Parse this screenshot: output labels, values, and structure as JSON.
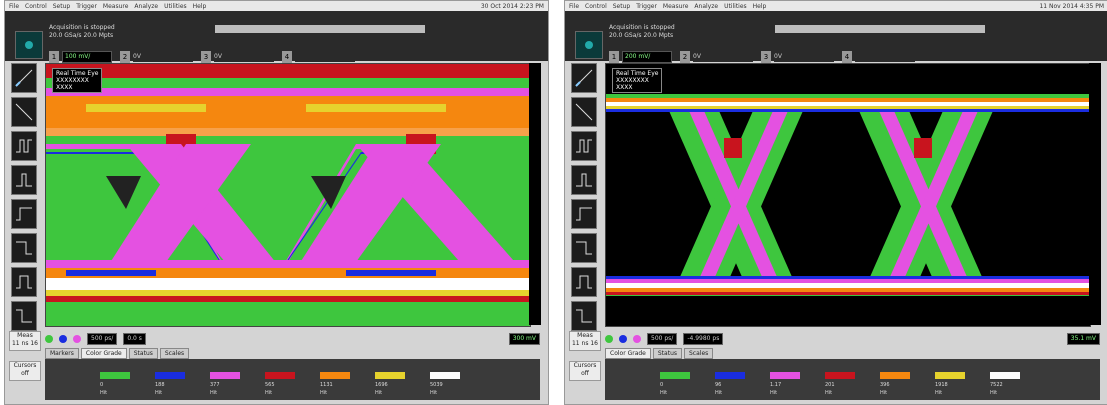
{
  "menu": [
    "File",
    "Control",
    "Setup",
    "Trigger",
    "Measure",
    "Analyze",
    "Utilities",
    "Help"
  ],
  "panels": [
    {
      "clock": "30 Oct 2014  2:23 PM",
      "acq_line1": "Acquisition is stopped",
      "acq_line2": "20.0 GSa/s   20.0 Mpts",
      "channel_scale": "100 mV/",
      "offset_label": "0V",
      "timebase": "500 ps/",
      "delay": "0.0 s",
      "trig_level": "300 mV",
      "title_box": [
        "Real Time Eye",
        "XXXXXXXX",
        "XXXX"
      ],
      "tabs": [
        "Markers",
        "Color Grade",
        "Status",
        "Scales"
      ],
      "active_tab": 1,
      "legend_colors": [
        "#3ec63e",
        "#1a2de0",
        "#e451e1",
        "#c8141e",
        "#f5870f",
        "#e6d22d",
        "#ffffff"
      ],
      "legend_r1": [
        "0",
        "188",
        "377",
        "565",
        "1131",
        "1696",
        "5039"
      ],
      "legend_r2": [
        "Hit",
        "Hit",
        "Hit",
        "Hit",
        "Hit",
        "Hit",
        "Hit"
      ],
      "side_labels": [
        "Meas",
        "11 ns 16",
        "Cursors",
        "off"
      ]
    },
    {
      "clock": "11 Nov 2014  4:35 PM",
      "acq_line1": "Acquisition is stopped",
      "acq_line2": "20.0 GSa/s   20.0 Mpts",
      "channel_scale": "200 mV/",
      "offset_label": "0V",
      "timebase": "500 ps/",
      "delay": "-4.9980 ps",
      "trig_level": "35.1 mV",
      "title_box": [
        "Real Time Eye",
        "XXXXXXXX",
        "XXXX"
      ],
      "tabs": [
        "Color Grade",
        "Status",
        "Scales"
      ],
      "active_tab": 0,
      "legend_colors": [
        "#3ec63e",
        "#1a2de0",
        "#e451e1",
        "#c8141e",
        "#f5870f",
        "#e6d22d",
        "#ffffff"
      ],
      "legend_r1": [
        "0",
        "96",
        "1.17",
        "201",
        "396",
        "1918",
        "7522"
      ],
      "legend_r2": [
        "Hit",
        "Hit",
        "Hit",
        "Hit",
        "Hit",
        "Hit",
        "Hit"
      ],
      "side_labels": [
        "Meas",
        "11 ns 16",
        "Cursors",
        "off"
      ]
    }
  ]
}
